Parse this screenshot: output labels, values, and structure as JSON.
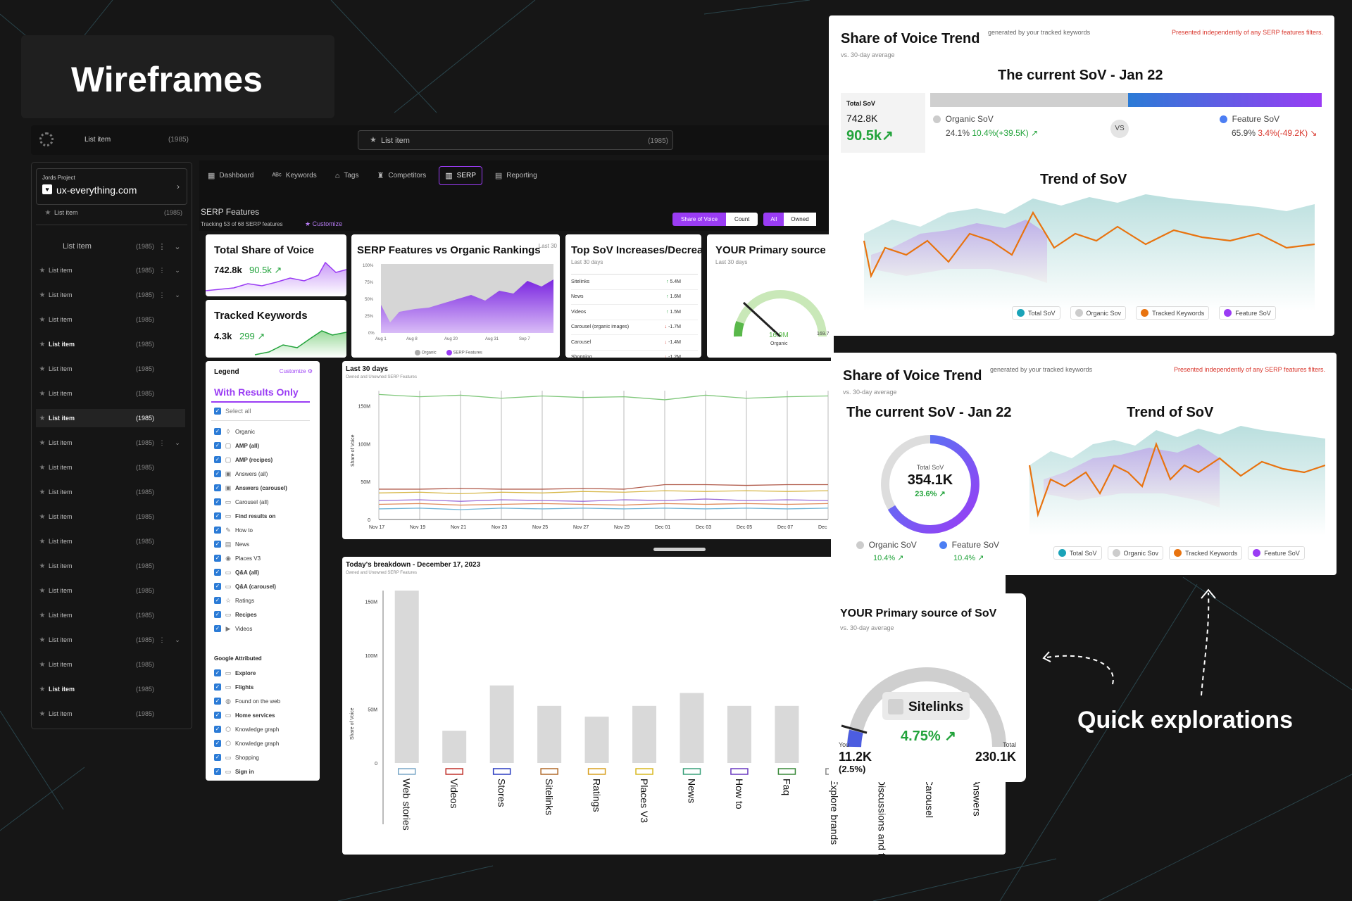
{
  "header": {
    "title": "Wireframes",
    "quick": "Quick explorations"
  },
  "topbar": {
    "item_label": "List item",
    "item_count": "(1985)",
    "search_label": "List item",
    "search_count": "(1985)"
  },
  "project": {
    "label": "Jords Project",
    "domain": "ux-everything.com"
  },
  "sidebar": {
    "first": {
      "label": "List item",
      "count": "(1985)"
    },
    "group": {
      "label": "List item",
      "count": "(1985)"
    },
    "items": [
      {
        "label": "List item",
        "count": "(1985)",
        "menu": true
      },
      {
        "label": "List item",
        "count": "(1985)",
        "menu": true
      },
      {
        "label": "List item",
        "count": "(1985)"
      },
      {
        "label": "List item",
        "count": "(1985)",
        "bold": true
      },
      {
        "label": "List item",
        "count": "(1985)"
      },
      {
        "label": "List item",
        "count": "(1985)"
      },
      {
        "label": "List item",
        "count": "(1985)",
        "bold": true,
        "selected": true
      },
      {
        "label": "List item",
        "count": "(1985)",
        "menu": true
      },
      {
        "label": "List item",
        "count": "(1985)"
      },
      {
        "label": "List item",
        "count": "(1985)"
      },
      {
        "label": "List item",
        "count": "(1985)"
      },
      {
        "label": "List item",
        "count": "(1985)"
      },
      {
        "label": "List item",
        "count": "(1985)"
      },
      {
        "label": "List item",
        "count": "(1985)"
      },
      {
        "label": "List item",
        "count": "(1985)"
      },
      {
        "label": "List item",
        "count": "(1985)",
        "menu": true
      },
      {
        "label": "List item",
        "count": "(1985)"
      },
      {
        "label": "List item",
        "count": "(1985)",
        "bold": true
      },
      {
        "label": "List item",
        "count": "(1985)"
      }
    ]
  },
  "nav": {
    "tabs": [
      {
        "label": "Dashboard",
        "icon": "grid-icon",
        "glyph": "▦"
      },
      {
        "label": "Keywords",
        "icon": "abc-icon",
        "glyph": "ᴬᴮᶜ"
      },
      {
        "label": "Tags",
        "icon": "tag-icon",
        "glyph": "⌂"
      },
      {
        "label": "Competitors",
        "icon": "trophy-icon",
        "glyph": "♜"
      },
      {
        "label": "SERP",
        "icon": "bar-chart-icon",
        "glyph": "▥",
        "active": true
      },
      {
        "label": "Reporting",
        "icon": "report-icon",
        "glyph": "▤"
      }
    ]
  },
  "serp": {
    "title": "SERP Features",
    "tracking": "Tracking 53 of 68 SERP features",
    "customize": "Customize",
    "toggle_a": [
      "Share of Voice",
      "Count"
    ],
    "toggle_b": [
      "All",
      "Owned"
    ]
  },
  "card_total": {
    "title": "Total Share of Voice",
    "value": "742.8k",
    "delta": "90.5k"
  },
  "card_tracked": {
    "title": "Tracked Keywords",
    "value": "4.3k",
    "delta": "299"
  },
  "card_vs": {
    "title": "SERP Features vs Organic Rankings",
    "corner": "Last 30",
    "legend": [
      "Organic",
      "SERP Features"
    ],
    "ticks_y": [
      "100%",
      "75%",
      "50%",
      "25%",
      "0%"
    ],
    "ticks_x": [
      "Aug 1",
      "Aug 8",
      "Aug 20",
      "Aug 31",
      "Sep 7"
    ]
  },
  "card_top": {
    "title": "Top SoV Increases/Decreases",
    "sub": "Last 30 days",
    "rows": [
      {
        "name": "Sitelinks",
        "val": "5.4M",
        "dir": "up"
      },
      {
        "name": "News",
        "val": "1.6M",
        "dir": "up"
      },
      {
        "name": "Videos",
        "val": "1.5M",
        "dir": "up"
      },
      {
        "name": "Carousel (organic images)",
        "val": "-1.7M",
        "dir": "down"
      },
      {
        "name": "Carousel",
        "val": "-1.4M",
        "dir": "down"
      },
      {
        "name": "Shopping",
        "val": "-1.2M",
        "dir": "down"
      }
    ]
  },
  "card_primary_small": {
    "title": "YOUR Primary source of SoV",
    "sub": "Last 30 days",
    "value": "16.9M",
    "label": "Organic",
    "total": "169.7M"
  },
  "legend_panel": {
    "title": "Legend",
    "customize": "Customize",
    "filter": "With Results Only",
    "select_all": "Select all",
    "group2": "Google Attributed",
    "items": [
      {
        "label": "Organic",
        "icon": "leaf-icon",
        "glyph": "◊"
      },
      {
        "label": "AMP (all)",
        "icon": "amp-icon",
        "glyph": "▢",
        "bold": true
      },
      {
        "label": "AMP (recipes)",
        "icon": "amp-icon",
        "glyph": "▢",
        "bold": true
      },
      {
        "label": "Answers (all)",
        "icon": "answers-icon",
        "glyph": "▣"
      },
      {
        "label": "Answers (carousel)",
        "icon": "answers-icon",
        "glyph": "▣",
        "bold": true
      },
      {
        "label": "Carousel (all)",
        "icon": "carousel-icon",
        "glyph": "▭"
      },
      {
        "label": "Find results on",
        "icon": "find-icon",
        "glyph": "▭",
        "bold": true
      },
      {
        "label": "How to",
        "icon": "wrench-icon",
        "glyph": "✎"
      },
      {
        "label": "News",
        "icon": "news-icon",
        "glyph": "▤"
      },
      {
        "label": "Places V3",
        "icon": "pin-icon",
        "glyph": "◉"
      },
      {
        "label": "Q&A (all)",
        "icon": "qa-icon",
        "glyph": "▭",
        "bold": true
      },
      {
        "label": "Q&A (carousel)",
        "icon": "qa-icon",
        "glyph": "▭",
        "bold": true
      },
      {
        "label": "Ratings",
        "icon": "star-icon",
        "glyph": "☆"
      },
      {
        "label": "Recipes",
        "icon": "recipe-icon",
        "glyph": "▭",
        "bold": true
      },
      {
        "label": "Videos",
        "icon": "video-icon",
        "glyph": "▶"
      }
    ],
    "items2": [
      {
        "label": "Explore",
        "icon": "explore-icon",
        "glyph": "▭",
        "bold": true
      },
      {
        "label": "Flights",
        "icon": "flight-icon",
        "glyph": "▭",
        "bold": true
      },
      {
        "label": "Found on the web",
        "icon": "web-icon",
        "glyph": "◍"
      },
      {
        "label": "Home services",
        "icon": "home-icon",
        "glyph": "▭",
        "bold": true
      },
      {
        "label": "Knowledge graph",
        "icon": "graph-icon",
        "glyph": "⬡"
      },
      {
        "label": "Knowledge graph",
        "icon": "graph-icon",
        "glyph": "⬡"
      },
      {
        "label": "Shopping",
        "icon": "shop-icon",
        "glyph": "▭"
      },
      {
        "label": "Sign in",
        "icon": "signin-icon",
        "glyph": "▭",
        "bold": true
      }
    ]
  },
  "chart_data": [
    {
      "type": "line",
      "title": "Last 30 days",
      "subtitle": "Owned and Unowned SERP Features",
      "ylabel": "Share of Voice",
      "x": [
        "Nov 17",
        "Nov 19",
        "Nov 21",
        "Nov 23",
        "Nov 25",
        "Nov 27",
        "Nov 29",
        "Dec 01",
        "Dec 03",
        "Dec 05",
        "Dec 07",
        "Dec"
      ],
      "yticks": [
        "150M",
        "100M",
        "50M",
        "0"
      ],
      "ylim": [
        0,
        170
      ],
      "series": [
        {
          "color": "#7fc77a",
          "values": [
            165,
            162,
            164,
            160,
            163,
            161,
            162,
            158,
            164,
            160,
            162,
            163
          ]
        },
        {
          "color": "#b05a4a",
          "values": [
            40,
            40,
            41,
            40,
            40,
            41,
            40,
            46,
            46,
            45,
            46,
            46
          ]
        },
        {
          "color": "#d7b84a",
          "values": [
            35,
            36,
            34,
            36,
            35,
            37,
            36,
            38,
            37,
            38,
            37,
            38
          ]
        },
        {
          "color": "#9c6cd6",
          "values": [
            25,
            26,
            24,
            26,
            25,
            24,
            26,
            25,
            27,
            25,
            26,
            25
          ]
        },
        {
          "color": "#e08a5a",
          "values": [
            20,
            21,
            19,
            20,
            21,
            20,
            19,
            21,
            20,
            21,
            20,
            21
          ]
        },
        {
          "color": "#6fb4d6",
          "values": [
            14,
            15,
            13,
            15,
            14,
            15,
            14,
            15,
            14,
            15,
            14,
            15
          ]
        }
      ]
    },
    {
      "type": "bar",
      "title": "Today's breakdown - December 17, 2023",
      "subtitle": "Owned and Unowned SERP Features",
      "ylabel": "Share of Voice",
      "yticks": [
        "150M",
        "100M",
        "50M",
        "0"
      ],
      "ylim": [
        0,
        160
      ],
      "categories": [
        "Web stories",
        "Videos",
        "Stores",
        "Sitelinks",
        "Ratings",
        "Places V3",
        "News",
        "How to",
        "Faq",
        "Explore brands",
        "Discussions and foru...",
        "Carousel",
        "Answers"
      ],
      "values": [
        160,
        30,
        72,
        53,
        43,
        53,
        65,
        53,
        53,
        0,
        0,
        0,
        0
      ]
    }
  ],
  "sov1": {
    "title": "Share of Voice Trend",
    "gen": "generated by your tracked keywords",
    "warn": "Presented independently of any SERP features filters.",
    "sub": "vs. 30-day average",
    "current": "The current SoV - Jan 22",
    "total_label": "Total SoV",
    "total": "742.8K",
    "total_delta": "90.5k",
    "organic_label": "Organic SoV",
    "organic_val": "24.1%",
    "organic_delta": "10.4%(+39.5K)",
    "organic_pct": 24.1,
    "feature_label": "Feature SoV",
    "feature_val": "65.9%",
    "feature_delta": "3.4%(-49.2K)",
    "vs": "VS",
    "trend": "Trend of SoV",
    "legend": [
      "Total SoV",
      "Organic Sov",
      "Tracked Keywords",
      "Feature SoV"
    ]
  },
  "sov2": {
    "title": "Share of Voice Trend",
    "gen": "generated by your tracked keywords",
    "warn": "Presented independently of any SERP features filters.",
    "sub": "vs. 30-day average",
    "current": "The current SoV - Jan 22",
    "trend": "Trend of SoV",
    "total_label": "Total SoV",
    "total": "354.1K",
    "total_delta": "23.6%",
    "organic_label": "Organic SoV",
    "organic_delta": "10.4%",
    "feature_label": "Feature SoV",
    "feature_delta": "10.4%",
    "legend": [
      "Total SoV",
      "Organic Sov",
      "Tracked Keywords",
      "Feature SoV"
    ]
  },
  "primary": {
    "title": "YOUR Primary source of SoV",
    "sub": "vs. 30-day average",
    "source": "Sitelinks",
    "delta": "4.75%",
    "you_label": "You",
    "you": "11.2K",
    "you_pct": "(2.5%)",
    "total_label": "Total",
    "total": "230.1K"
  },
  "colors": {
    "purple": "#9a3cf4",
    "teal": "#1aa3b8",
    "orange": "#e8730f",
    "blue": "#4c7ef3",
    "green": "#22a33b",
    "red": "#d9382e"
  }
}
